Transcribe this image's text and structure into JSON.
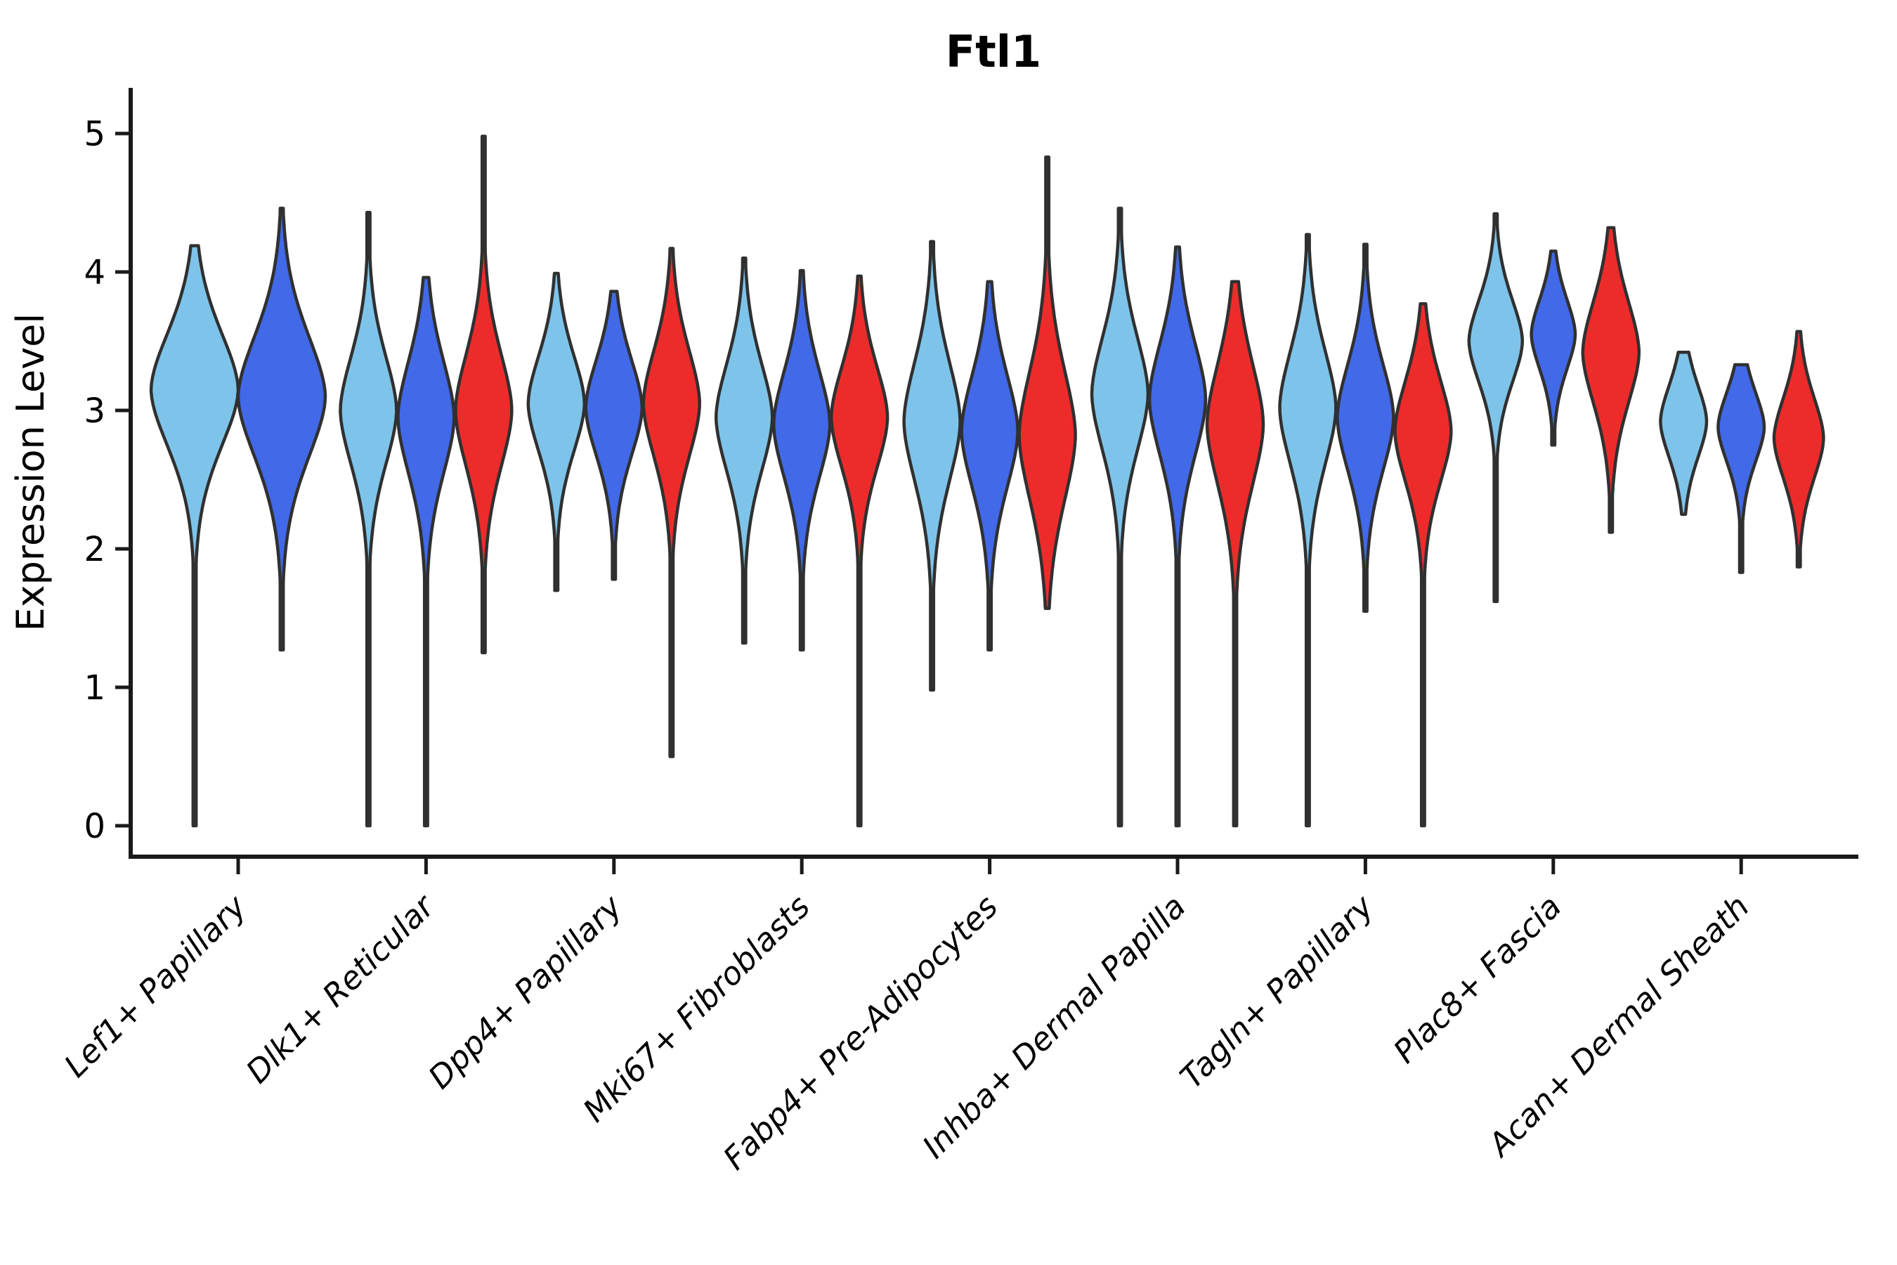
{
  "title": "Ftl1",
  "axes": {
    "ylabel": "Expression Level",
    "yticks": [
      "0",
      "1",
      "2",
      "3",
      "4",
      "5"
    ]
  },
  "chart_data": {
    "type": "violin",
    "title": "Ftl1",
    "xlabel": "",
    "ylabel": "Expression Level",
    "ylim": [
      0,
      5.2
    ],
    "grid": false,
    "legend": "none",
    "categories": [
      "Lef1+ Papillary",
      "Dlk1+ Reticular",
      "Dpp4+ Papillary",
      "Mki67+ Fibroblasts",
      "Fabp4+ Pre-Adipocytes",
      "Inhba+ Dermal Papilla",
      "Tagln+ Papillary",
      "Plac8+ Fascia",
      "Acan+ Dermal Sheath"
    ],
    "series_colors": {
      "skyblue": "#7EC4EA",
      "royalblue": "#4169E8",
      "red": "#EE2B2B"
    },
    "outline_color": "#303030",
    "violins": [
      {
        "category": 0,
        "series": "skyblue",
        "min": 0.0,
        "max": 4.19,
        "mode": 3.15,
        "sigma": 0.42,
        "width": 1.0
      },
      {
        "category": 0,
        "series": "royalblue",
        "min": 1.27,
        "max": 4.46,
        "mode": 3.1,
        "sigma": 0.45,
        "width": 1.0
      },
      {
        "category": 1,
        "series": "skyblue",
        "min": 0.0,
        "max": 4.43,
        "mode": 3.0,
        "sigma": 0.4,
        "width": 1.0
      },
      {
        "category": 1,
        "series": "royalblue",
        "min": 0.0,
        "max": 3.96,
        "mode": 2.95,
        "sigma": 0.42,
        "width": 1.0
      },
      {
        "category": 1,
        "series": "red",
        "min": 1.25,
        "max": 4.98,
        "mode": 3.0,
        "sigma": 0.42,
        "width": 1.0
      },
      {
        "category": 2,
        "series": "skyblue",
        "min": 1.7,
        "max": 3.99,
        "mode": 3.05,
        "sigma": 0.36,
        "width": 1.0
      },
      {
        "category": 2,
        "series": "royalblue",
        "min": 1.78,
        "max": 3.86,
        "mode": 3.02,
        "sigma": 0.36,
        "width": 1.0
      },
      {
        "category": 2,
        "series": "red",
        "min": 0.5,
        "max": 4.17,
        "mode": 3.05,
        "sigma": 0.4,
        "width": 1.0
      },
      {
        "category": 3,
        "series": "skyblue",
        "min": 1.32,
        "max": 4.1,
        "mode": 2.95,
        "sigma": 0.4,
        "width": 1.0
      },
      {
        "category": 3,
        "series": "royalblue",
        "min": 1.27,
        "max": 4.01,
        "mode": 2.9,
        "sigma": 0.4,
        "width": 1.0
      },
      {
        "category": 3,
        "series": "red",
        "min": 0.0,
        "max": 3.97,
        "mode": 2.95,
        "sigma": 0.38,
        "width": 1.0
      },
      {
        "category": 4,
        "series": "skyblue",
        "min": 0.98,
        "max": 4.22,
        "mode": 2.92,
        "sigma": 0.44,
        "width": 1.0
      },
      {
        "category": 4,
        "series": "royalblue",
        "min": 1.27,
        "max": 3.93,
        "mode": 2.85,
        "sigma": 0.42,
        "width": 1.0
      },
      {
        "category": 4,
        "series": "red",
        "min": 1.57,
        "max": 4.83,
        "mode": 2.82,
        "sigma": 0.48,
        "width": 1.0
      },
      {
        "category": 5,
        "series": "skyblue",
        "min": 0.0,
        "max": 4.46,
        "mode": 3.12,
        "sigma": 0.42,
        "width": 1.0
      },
      {
        "category": 5,
        "series": "royalblue",
        "min": 0.0,
        "max": 4.18,
        "mode": 3.08,
        "sigma": 0.42,
        "width": 1.0
      },
      {
        "category": 5,
        "series": "red",
        "min": 0.0,
        "max": 3.93,
        "mode": 2.9,
        "sigma": 0.45,
        "width": 1.0
      },
      {
        "category": 6,
        "series": "skyblue",
        "min": 0.0,
        "max": 4.27,
        "mode": 3.02,
        "sigma": 0.42,
        "width": 1.0
      },
      {
        "category": 6,
        "series": "royalblue",
        "min": 1.55,
        "max": 4.2,
        "mode": 2.95,
        "sigma": 0.4,
        "width": 1.0
      },
      {
        "category": 6,
        "series": "red",
        "min": 0.0,
        "max": 3.77,
        "mode": 2.85,
        "sigma": 0.38,
        "width": 1.0
      },
      {
        "category": 7,
        "series": "skyblue",
        "min": 1.62,
        "max": 4.42,
        "mode": 3.5,
        "sigma": 0.31,
        "width": 0.95
      },
      {
        "category": 7,
        "series": "royalblue",
        "min": 2.75,
        "max": 4.15,
        "mode": 3.55,
        "sigma": 0.26,
        "width": 0.78
      },
      {
        "category": 7,
        "series": "red",
        "min": 2.12,
        "max": 4.32,
        "mode": 3.42,
        "sigma": 0.38,
        "width": 1.0
      },
      {
        "category": 8,
        "series": "skyblue",
        "min": 2.25,
        "max": 3.42,
        "mode": 2.92,
        "sigma": 0.27,
        "width": 0.82
      },
      {
        "category": 8,
        "series": "royalblue",
        "min": 1.83,
        "max": 3.33,
        "mode": 2.88,
        "sigma": 0.26,
        "width": 0.82
      },
      {
        "category": 8,
        "series": "red",
        "min": 1.87,
        "max": 3.57,
        "mode": 2.8,
        "sigma": 0.3,
        "width": 0.88
      }
    ]
  }
}
